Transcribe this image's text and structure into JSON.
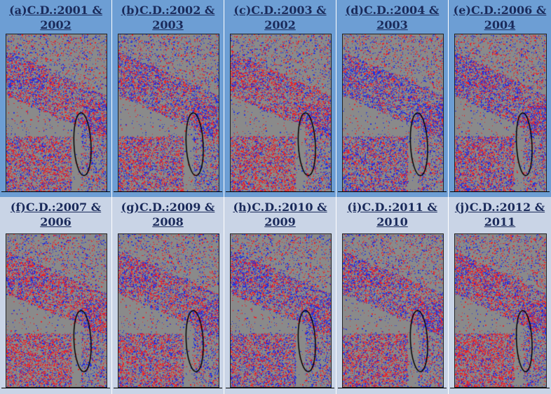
{
  "panels": [
    {
      "line1": "(a)C.D.:2001 &",
      "line2": "2002"
    },
    {
      "line1": "(b)C.D.:2002 &",
      "line2": "2003"
    },
    {
      "line1": "(c)C.D.:2003 &",
      "line2": "2002"
    },
    {
      "line1": "(d)C.D.:2004 &",
      "line2": "2003"
    },
    {
      "line1": "(e)C.D.:2006 &",
      "line2": "2004"
    },
    {
      "line1": "(f)C.D.:2007 &",
      "line2": "2006"
    },
    {
      "line1": "(g)C.D.:2009 &",
      "line2": "2008"
    },
    {
      "line1": "(h)C.D.:2010 &",
      "line2": "2009"
    },
    {
      "line1": "(i)C.D.:2011 &",
      "line2": "2010"
    },
    {
      "line1": "(j)C.D.:2012 &",
      "line2": "2011"
    }
  ],
  "colors": {
    "top_band": "#6d9ed4",
    "bottom_band": "#c9d4e6",
    "map_background": "#8a8a8a",
    "change_increase": "#e8242a",
    "change_decrease": "#2230e0",
    "ellipse_outline": "#000000"
  }
}
